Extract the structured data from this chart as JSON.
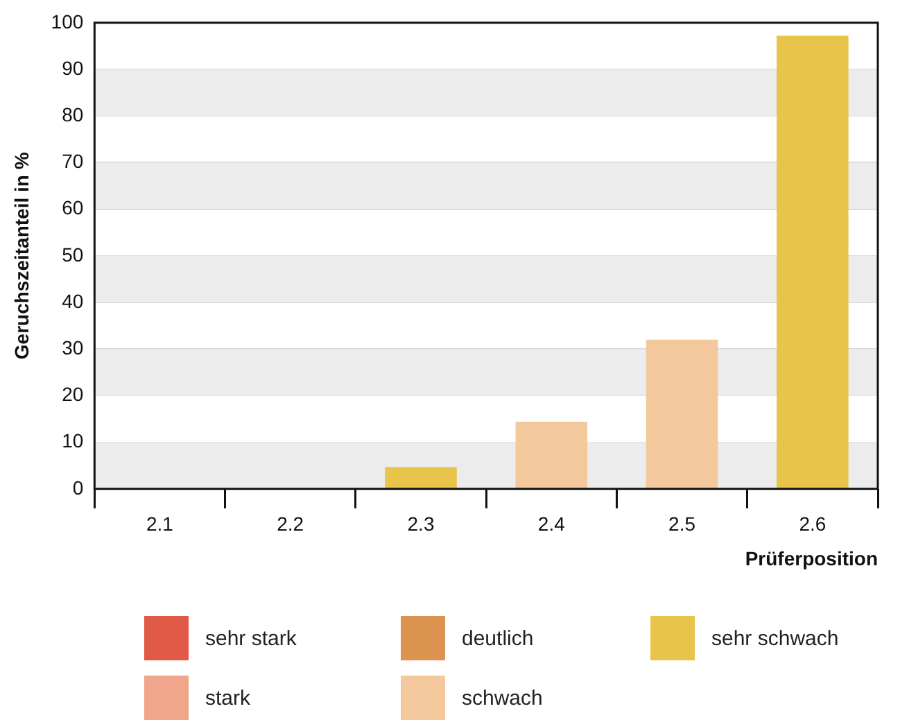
{
  "chart_data": {
    "type": "bar",
    "stacked": true,
    "xlabel": "Prüferposition",
    "ylabel": "Geruchszeitanteil in %",
    "categories": [
      "2.1",
      "2.2",
      "2.3",
      "2.4",
      "2.5",
      "2.6"
    ],
    "series": [
      {
        "name": "sehr stark",
        "color": "#e05a47",
        "values": [
          null,
          null,
          null,
          null,
          null,
          null
        ]
      },
      {
        "name": "stark",
        "color": "#f0a68a",
        "values": [
          null,
          null,
          null,
          null,
          null,
          null
        ]
      },
      {
        "name": "deutlich",
        "color": "#dd9450",
        "values": [
          null,
          null,
          null,
          null,
          null,
          null
        ]
      },
      {
        "name": "schwach",
        "color": "#f2c89c",
        "values": [
          null,
          null,
          null,
          14.4,
          32,
          null
        ]
      },
      {
        "name": "sehr schwach",
        "color": "#e8c54a",
        "values": [
          null,
          null,
          4.7,
          null,
          null,
          97.2
        ]
      }
    ],
    "ylim": [
      0,
      100
    ],
    "yticks": [
      0,
      10,
      20,
      30,
      40,
      50,
      60,
      70,
      80,
      90,
      100
    ],
    "grid": "y",
    "legend": "bottom"
  }
}
